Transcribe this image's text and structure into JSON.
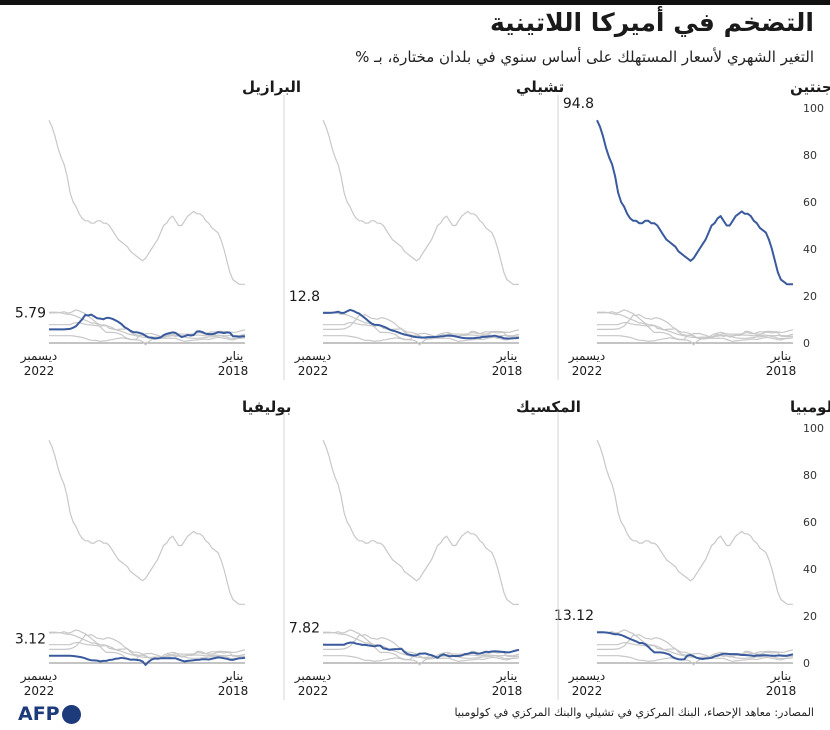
{
  "title": "التضخم في أميركا اللاتينية",
  "subtitle": "التغير الشهري لأسعار المستهلك على أساس سنوي في بلدان مختارة، بـ %",
  "source": "المصادر: معاهد الإحصاء، البنك المركزي في تشيلي والبنك المركزي في كولومبيا",
  "logo": "AFP",
  "colors": {
    "highlight": "#3a5a9e",
    "background_series": "#c8c8c8",
    "axis": "#888888",
    "text": "#1a1a1a"
  },
  "chart_data": {
    "type": "line",
    "ylim": [
      0,
      100
    ],
    "yticks": [
      0,
      20,
      40,
      60,
      80,
      100
    ],
    "x_start_label": {
      "month": "يناير",
      "year": "2018"
    },
    "x_end_label": {
      "month": "ديسمبر",
      "year": "2022"
    },
    "x_direction": "right-to-left",
    "panels": [
      {
        "country": "الأرجنتين",
        "last_value": "94.8",
        "highlight": 0
      },
      {
        "country": "تشيلي",
        "last_value": "12.8",
        "highlight": 1
      },
      {
        "country": "البرازيل",
        "last_value": "5.79",
        "highlight": 2
      },
      {
        "country": "كولومبيا",
        "last_value": "13.12",
        "highlight": 3
      },
      {
        "country": "المكسيك",
        "last_value": "7.82",
        "highlight": 4
      },
      {
        "country": "بوليفيا",
        "last_value": "3.12",
        "highlight": 5
      }
    ],
    "series": [
      {
        "name": "الأرجنتين",
        "values": [
          25,
          25,
          25,
          26,
          27,
          30,
          35,
          40,
          44,
          47,
          48,
          49,
          51,
          52,
          54,
          55,
          55,
          56,
          55,
          54,
          52,
          50,
          50,
          52,
          54,
          53,
          51,
          50,
          47,
          44,
          42,
          40,
          38,
          36,
          35,
          36,
          37,
          38,
          39,
          41,
          42,
          43,
          44,
          46,
          48,
          50,
          51,
          51,
          52,
          52,
          51,
          51,
          52,
          52,
          53,
          55,
          58,
          60,
          64,
          71,
          76,
          79,
          83,
          88,
          92,
          94.8
        ]
      },
      {
        "name": "تشيلي",
        "values": [
          2.2,
          2.1,
          2.0,
          1.9,
          1.9,
          2.0,
          2.5,
          2.7,
          3.1,
          2.9,
          2.8,
          2.6,
          2.6,
          2.3,
          2.2,
          2.1,
          2.0,
          2.0,
          2.1,
          2.2,
          2.5,
          2.8,
          3.0,
          3.2,
          3.1,
          2.9,
          2.8,
          2.7,
          2.6,
          2.5,
          2.5,
          2.4,
          2.3,
          2.4,
          2.5,
          2.7,
          3.0,
          3.3,
          3.6,
          4.0,
          4.5,
          5.0,
          5.3,
          5.8,
          6.5,
          7.0,
          7.5,
          7.7,
          7.8,
          8.4,
          9.4,
          10.5,
          11.5,
          12.5,
          13.0,
          13.7,
          14.1,
          13.5,
          12.8,
          12.8,
          13.3,
          13.0,
          12.9,
          12.8,
          12.8,
          12.8
        ]
      },
      {
        "name": "البرازيل",
        "values": [
          2.9,
          2.8,
          2.7,
          2.8,
          2.9,
          4.4,
          4.5,
          4.2,
          4.5,
          4.6,
          4.0,
          3.8,
          3.8,
          3.9,
          4.6,
          5.0,
          4.9,
          3.4,
          3.2,
          3.4,
          2.9,
          2.5,
          3.3,
          4.3,
          4.5,
          4.2,
          3.9,
          3.3,
          2.4,
          2.1,
          1.9,
          2.3,
          2.4,
          3.1,
          3.9,
          4.3,
          4.6,
          4.6,
          5.2,
          6.1,
          6.8,
          8.1,
          9.0,
          9.7,
          10.3,
          10.7,
          10.7,
          10.1,
          10.4,
          10.5,
          11.3,
          12.1,
          11.7,
          11.9,
          10.1,
          8.7,
          7.2,
          6.5,
          6.0,
          5.9,
          5.8,
          5.8,
          5.8,
          5.8,
          5.8,
          5.79
        ]
      },
      {
        "name": "كولومبيا",
        "values": [
          3.7,
          3.4,
          3.1,
          3.1,
          3.2,
          3.2,
          3.1,
          3.1,
          3.2,
          3.3,
          3.3,
          3.2,
          3.2,
          3.0,
          3.2,
          3.3,
          3.4,
          3.4,
          3.7,
          3.8,
          3.8,
          3.8,
          3.9,
          3.9,
          3.6,
          3.1,
          2.8,
          2.2,
          2.0,
          1.9,
          1.7,
          1.9,
          2.2,
          2.9,
          3.4,
          3.2,
          1.6,
          1.5,
          1.6,
          2.0,
          2.6,
          3.6,
          4.0,
          4.4,
          4.5,
          4.5,
          4.5,
          5.6,
          6.9,
          8.0,
          8.5,
          8.5,
          9.2,
          9.7,
          10.2,
          10.8,
          11.4,
          11.9,
          12.2,
          12.2,
          12.5,
          12.8,
          13.0,
          13.1,
          13.1,
          13.12
        ]
      },
      {
        "name": "المكسيك",
        "values": [
          5.6,
          5.3,
          5.0,
          4.6,
          4.5,
          4.7,
          4.8,
          4.9,
          5.0,
          4.9,
          4.7,
          4.8,
          4.4,
          4.0,
          4.0,
          4.4,
          4.3,
          3.9,
          3.8,
          3.2,
          3.0,
          3.0,
          3.0,
          2.8,
          3.2,
          3.7,
          3.2,
          2.2,
          2.8,
          3.3,
          3.6,
          4.1,
          4.0,
          4.0,
          3.3,
          3.2,
          3.5,
          3.8,
          4.7,
          6.1,
          5.9,
          5.9,
          5.8,
          5.6,
          6.0,
          6.2,
          7.4,
          7.4,
          7.1,
          7.3,
          7.5,
          7.7,
          7.7,
          8.0,
          8.2,
          8.7,
          8.7,
          8.4,
          7.8,
          7.8,
          7.8,
          7.8,
          7.8,
          7.8,
          7.8,
          7.82
        ]
      },
      {
        "name": "بوليفيا",
        "values": [
          2.2,
          2.1,
          2.0,
          1.7,
          1.3,
          1.4,
          1.8,
          2.0,
          2.3,
          2.4,
          2.1,
          1.8,
          1.5,
          1.6,
          1.6,
          1.4,
          1.3,
          1.2,
          1.0,
          0.9,
          0.7,
          1.0,
          1.5,
          2.0,
          2.0,
          2.1,
          2.0,
          2.1,
          2.0,
          1.8,
          1.9,
          1.4,
          0.5,
          -0.8,
          0.7,
          1.2,
          1.3,
          1.5,
          1.4,
          1.8,
          2.0,
          2.2,
          1.9,
          1.8,
          1.4,
          1.3,
          0.9,
          0.9,
          0.7,
          1.0,
          1.1,
          1.2,
          1.5,
          2.0,
          2.4,
          2.6,
          2.8,
          3.0,
          3.1,
          3.1,
          3.1,
          3.1,
          3.1,
          3.1,
          3.1,
          3.12
        ]
      }
    ]
  }
}
